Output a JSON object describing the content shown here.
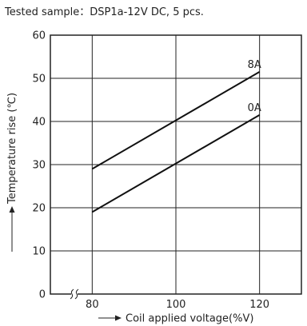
{
  "caption": "Tested sample：DSP1a-12V DC, 5 pcs.",
  "chart_data": {
    "type": "line",
    "xlabel": "Coil applied voltage(%V)",
    "ylabel": "Temperature rise (℃)",
    "xlim": [
      70,
      130
    ],
    "ylim": [
      0,
      60
    ],
    "x_ticks": [
      80,
      100,
      120
    ],
    "y_ticks": [
      0,
      10,
      20,
      30,
      40,
      50,
      60
    ],
    "grid": true,
    "axis_break": "x-axis between origin and 80",
    "series": [
      {
        "name": "8A",
        "x": [
          80,
          120
        ],
        "y": [
          29,
          51.5
        ]
      },
      {
        "name": "0A",
        "x": [
          80,
          120
        ],
        "y": [
          19,
          41.5
        ]
      }
    ]
  }
}
